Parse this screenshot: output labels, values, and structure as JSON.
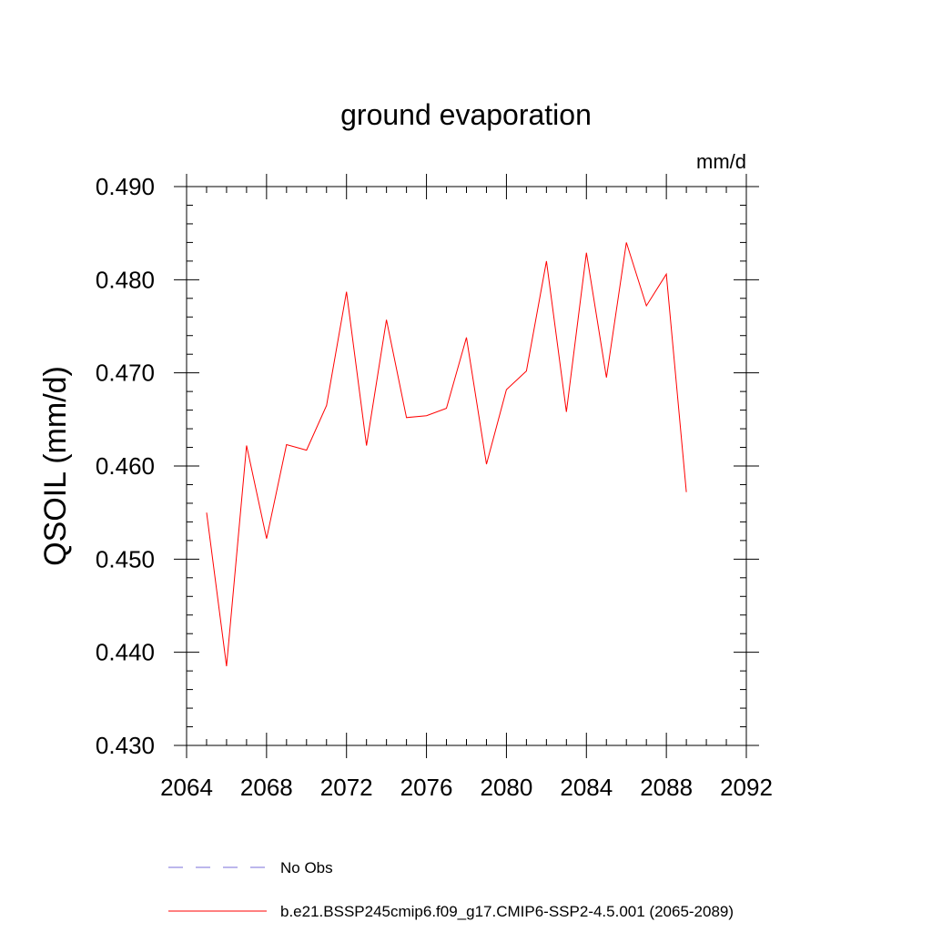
{
  "chart_data": {
    "type": "line",
    "title": "ground evaporation",
    "units_label": "mm/d",
    "ylabel": "QSOIL  (mm/d)",
    "xlabel": "",
    "xlim": [
      2064,
      2092
    ],
    "ylim": [
      0.43,
      0.49
    ],
    "x_ticks": [
      2064,
      2068,
      2072,
      2076,
      2080,
      2084,
      2088,
      2092
    ],
    "x_tick_labels": [
      "2064",
      "2068",
      "2072",
      "2076",
      "2080",
      "2084",
      "2088",
      "2092"
    ],
    "y_ticks": [
      0.43,
      0.44,
      0.45,
      0.46,
      0.47,
      0.48,
      0.49
    ],
    "y_tick_labels": [
      "0.430",
      "0.440",
      "0.450",
      "0.460",
      "0.470",
      "0.480",
      "0.490"
    ],
    "grid": false,
    "legend_position": "bottom",
    "series": [
      {
        "name": "b.e21.BSSP245cmip6.f09_g17.CMIP6-SSP2-4.5.001 (2065-2089)",
        "color": "#ff0000",
        "style": "solid",
        "x": [
          2065,
          2066,
          2067,
          2068,
          2069,
          2070,
          2071,
          2072,
          2073,
          2074,
          2075,
          2076,
          2077,
          2078,
          2079,
          2080,
          2081,
          2082,
          2083,
          2084,
          2085,
          2086,
          2087,
          2088,
          2089
        ],
        "y": [
          0.455,
          0.4385,
          0.4622,
          0.4522,
          0.4623,
          0.4617,
          0.4665,
          0.4787,
          0.4622,
          0.4757,
          0.4652,
          0.4654,
          0.4662,
          0.4738,
          0.4602,
          0.4682,
          0.4702,
          0.482,
          0.4658,
          0.4829,
          0.4695,
          0.484,
          0.4772,
          0.4806,
          0.4572
        ]
      },
      {
        "name": "No Obs",
        "color": "#7a6fd8",
        "style": "dashed",
        "x": [],
        "y": []
      }
    ]
  }
}
